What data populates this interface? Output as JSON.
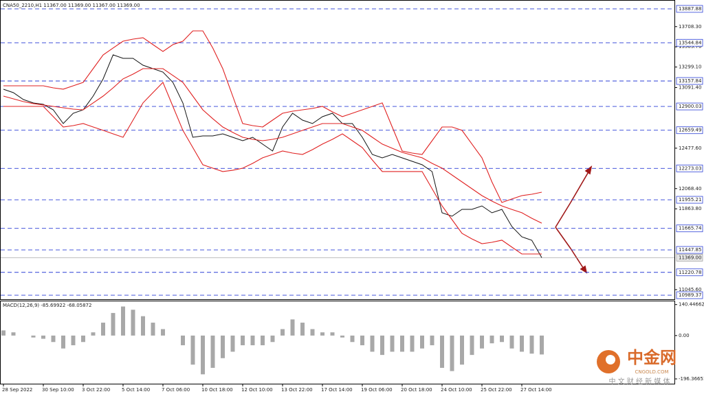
{
  "chart_data": [
    {
      "type": "line",
      "title": "CNA50_2210,H1  11367.00 11369.00 11367.00 11369.00",
      "categories": [
        "28 Sep 2022",
        null,
        null,
        null,
        "30 Sep 10:00",
        null,
        null,
        null,
        "3 Oct 22:00",
        null,
        null,
        null,
        "5 Oct 14:00",
        null,
        null,
        null,
        "7 Oct 06:00",
        null,
        null,
        null,
        "10 Oct 18:00",
        null,
        null,
        null,
        "12 Oct 10:00",
        null,
        null,
        null,
        "13 Oct 22:00",
        null,
        null,
        null,
        "17 Oct 14:00",
        null,
        null,
        null,
        "19 Oct 06:00",
        null,
        null,
        null,
        "20 Oct 18:00",
        null,
        null,
        null,
        "24 Oct 10:00",
        null,
        null,
        null,
        "25 Oct 22:00",
        null,
        null,
        null,
        "27 Oct 14:00",
        null,
        null
      ],
      "series": [
        {
          "color": "#111111",
          "values": [
            13074.6,
            13039.9,
            12970.4,
            12935.6,
            12921.7,
            12866.1,
            12727.1,
            12831.3,
            12866.1,
            13005.1,
            13178.9,
            13422.2,
            13387.4,
            13387.4,
            13317.9,
            13283.2,
            13248.4,
            13144.1,
            12935.6,
            12588.1,
            12602.0,
            12602.0,
            12622.8,
            12588.1,
            12553.3,
            12588.1,
            12518.6,
            12449.0,
            12692.3,
            12831.3,
            12761.8,
            12727.1,
            12796.6,
            12831.3,
            12727.1,
            12727.1,
            12588.1,
            12414.3,
            12379.5,
            12414.3,
            12379.5,
            12344.8,
            12310.0,
            12240.5,
            11823.5,
            11788.7,
            11858.2,
            11858.2,
            11893.0,
            11823.5,
            11858.2,
            11684.4,
            11580.2,
            11545.4,
            11369
          ]
        },
        {
          "color": "#e02020",
          "values": [
            13005,
            12977,
            12949,
            12929,
            12915,
            12901,
            12887,
            12873,
            12866,
            12936,
            13005,
            13088,
            13179,
            13227,
            13283,
            13283,
            13283,
            13214,
            13144,
            13005,
            12866,
            12776,
            12692,
            12637,
            12588,
            12567,
            12553,
            12567,
            12588,
            12623,
            12658,
            12692,
            12727,
            12727,
            12727,
            12692,
            12658,
            12588,
            12519,
            12477,
            12435,
            12407,
            12380,
            12324,
            12275,
            12206,
            12136,
            12067,
            11997,
            11942,
            11893,
            11858,
            11824,
            11768,
            11719
          ]
        },
        {
          "color": "#e02020",
          "values": [
            13109,
            13109,
            13109,
            13109,
            13109,
            13088,
            13075,
            13109,
            13144,
            13283,
            13422,
            13492,
            13561,
            13582,
            13596,
            13526,
            13457,
            13526,
            13561,
            13665,
            13665,
            13492,
            13283,
            13005,
            12727,
            12706,
            12692,
            12762,
            12831,
            12852,
            12866,
            12880,
            12901,
            12845,
            12797,
            12831,
            12866,
            12901,
            12936,
            12692,
            12449,
            12428,
            12414,
            12553,
            12692,
            12692,
            12658,
            12519,
            12380,
            12136,
            11928,
            11963,
            11997,
            12011,
            12032
          ]
        },
        {
          "color": "#e02020",
          "values": [
            12901,
            12901,
            12901,
            12901,
            12901,
            12797,
            12692,
            12706,
            12727,
            12692,
            12658,
            12623,
            12588,
            12762,
            12936,
            13040,
            13144,
            12901,
            12658,
            12484,
            12310,
            12275,
            12241,
            12254,
            12275,
            12324,
            12380,
            12414,
            12449,
            12428,
            12414,
            12463,
            12519,
            12567,
            12623,
            12553,
            12484,
            12359,
            12241,
            12241,
            12241,
            12241,
            12241,
            12067,
            11893,
            11754,
            11615,
            11559,
            11511,
            11525,
            11546,
            11476,
            11407,
            11407,
            11407
          ]
        }
      ],
      "levels": [
        13887.88,
        13544.84,
        13157.84,
        12900.03,
        12659.49,
        12273.03,
        11955.21,
        11665.74,
        11447.85,
        11220.78,
        10989.37
      ],
      "level_color": "#2b3fd6",
      "current_price": {
        "value": 11369,
        "label": "11369.00"
      },
      "ylim": [
        10955,
        13943
      ],
      "yticks": [
        {
          "value": 13708.3,
          "label": "13708.30"
        },
        {
          "value": 13503.7,
          "label": "13503.70"
        },
        {
          "value": 13299.1,
          "label": "13299.10"
        },
        {
          "value": 13091.4,
          "label": "13091.40"
        },
        {
          "value": 12477.6,
          "label": "12477.60"
        },
        {
          "value": 12068.4,
          "label": "12068.40"
        },
        {
          "value": 11863.8,
          "label": "11863.80"
        },
        {
          "value": 11045.6,
          "label": "11045.60"
        }
      ]
    },
    {
      "type": "bar",
      "title": "MACD(12,26,9) -85.69922 -68.05872",
      "color": "#a8a8a8",
      "values": [
        23.4,
        14.6,
        0,
        -8.8,
        -14.6,
        -29.3,
        -58.5,
        -43.9,
        -29.3,
        14.6,
        58.5,
        102.4,
        131.7,
        117,
        87.8,
        58.5,
        29.3,
        0,
        -43.9,
        -131.7,
        -175.6,
        -146.3,
        -102.4,
        -73.2,
        -43.9,
        -43.9,
        -43.9,
        -29.3,
        29.3,
        73.2,
        58.5,
        29.3,
        14.6,
        14.6,
        -8.8,
        -29.3,
        -43.9,
        -73.2,
        -87.8,
        -73.2,
        -73.2,
        -73.2,
        -58.5,
        -43.9,
        -146.3,
        -160.9,
        -131.7,
        -87.8,
        -58.5,
        -35.1,
        -29.3,
        -58.5,
        -73.2,
        -81.9,
        -85.7
      ],
      "ylim": [
        -215,
        152
      ],
      "yticks": [
        140.44662,
        {
          "value": 0,
          "label": "0.00"
        },
        -196.36651
      ]
    }
  ],
  "watermark": {
    "name": "中金网",
    "url": "CNGOLD.COM",
    "tagline": "中 文 财 经 新 媒 体"
  }
}
